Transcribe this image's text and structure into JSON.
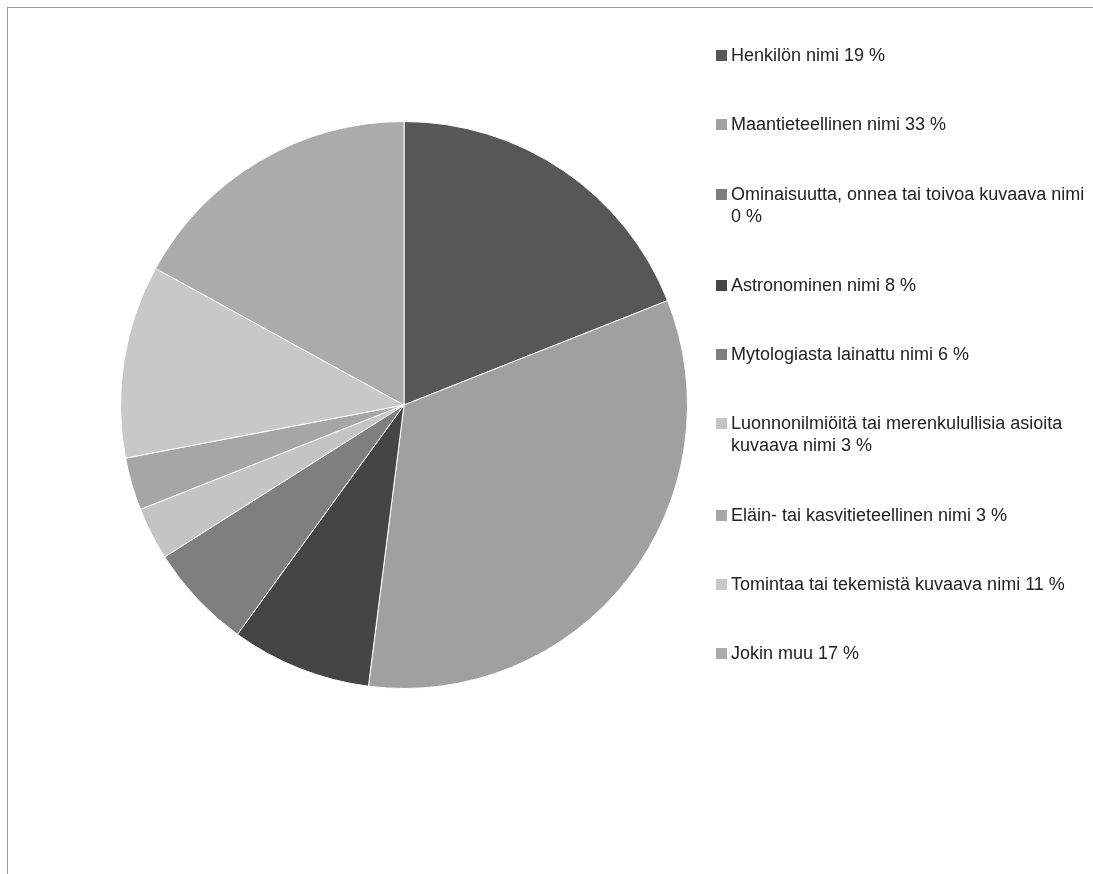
{
  "chart_data": {
    "type": "pie",
    "categories": [
      "Henkilön nimi 19 %",
      "Maantieteellinen nimi 33 %",
      "Ominaisuutta, onnea tai toivoa kuvaava nimi 0 %",
      "Astronominen nimi 8 %",
      "Mytologiasta lainattu nimi 6 %",
      "Luonnonilmiöitä tai merenkulullisia asioita kuvaava nimi 3 %",
      "Eläin- tai kasvitieteellinen nimi 3 %",
      "Tomintaa tai tekemistä kuvaava nimi 11 %",
      "Jokin muu 17 %"
    ],
    "values": [
      19,
      33,
      0,
      8,
      6,
      3,
      3,
      11,
      17
    ],
    "colors": [
      "#575757",
      "#a0a0a0",
      "#7d7d7d",
      "#454545",
      "#7f7f7f",
      "#c4c4c4",
      "#a6a6a6",
      "#c8c8c8",
      "#ababab"
    ],
    "legend": "right"
  }
}
